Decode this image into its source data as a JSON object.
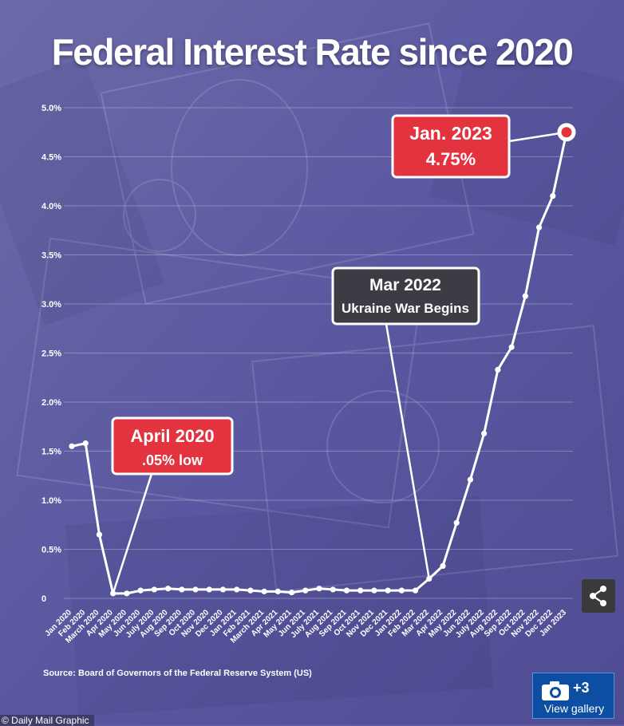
{
  "title": "Federal Interest Rate since 2020",
  "source": "Source: Board of Governors of the Federal Reserve System (US)",
  "credit": "© Daily Mail Graphic",
  "gallery": {
    "count": "+3",
    "label": "View gallery"
  },
  "icons": {
    "share": "share-icon",
    "camera": "camera-icon"
  },
  "colors": {
    "annotation_red": "#e2333f",
    "annotation_dark": "#3c3c44",
    "line": "#ffffff",
    "highlight_point": "#e2333f"
  },
  "chart_data": {
    "type": "line",
    "title": "Federal Interest Rate since 2020",
    "ylim": [
      0,
      5.0
    ],
    "y_ticks": [
      "0",
      "0.5%",
      "1.0%",
      "1.5%",
      "2.0%",
      "2.5%",
      "3.0%",
      "3.5%",
      "4.0%",
      "4.5%",
      "5.0%"
    ],
    "grid": true,
    "categories": [
      "Jan 2020",
      "Feb 2020",
      "March 2020",
      "Apr 2020",
      "May 2020",
      "Jun 2020",
      "July 2020",
      "Aug 2020",
      "Sep 2020",
      "Oct 2020",
      "Nov 2020",
      "Dec 2020",
      "Jan 2021",
      "Feb 2021",
      "March 2021",
      "Apr 2021",
      "May 2021",
      "Jun 2021",
      "July 2021",
      "Aug 2021",
      "Sep 2021",
      "Oct 2021",
      "Nov 2021",
      "Dec 2021",
      "Jan 2022",
      "Feb 2022",
      "Mar 2022",
      "Apr 2022",
      "May 2022",
      "Jun 2022",
      "July 2022",
      "Aug 2022",
      "Sep 2022",
      "Oct 2022",
      "Nov 2022",
      "Dec 2022",
      "Jan 2023"
    ],
    "series": [
      {
        "values": [
          1.55,
          1.58,
          0.65,
          0.05,
          0.05,
          0.08,
          0.09,
          0.1,
          0.09,
          0.09,
          0.09,
          0.09,
          0.09,
          0.08,
          0.07,
          0.07,
          0.06,
          0.08,
          0.1,
          0.09,
          0.08,
          0.08,
          0.08,
          0.08,
          0.08,
          0.08,
          0.2,
          0.33,
          0.77,
          1.21,
          1.68,
          2.33,
          2.56,
          3.08,
          3.78,
          4.1,
          4.75
        ]
      }
    ],
    "annotations": [
      {
        "title": "April 2020",
        "subtitle": ".05% low",
        "category": "Apr 2020",
        "style": "red"
      },
      {
        "title": "Mar 2022",
        "subtitle": "Ukraine War Begins",
        "category": "Mar 2022",
        "style": "dark"
      },
      {
        "title": "Jan. 2023",
        "subtitle": "4.75%",
        "category": "Jan 2023",
        "style": "red"
      }
    ]
  }
}
